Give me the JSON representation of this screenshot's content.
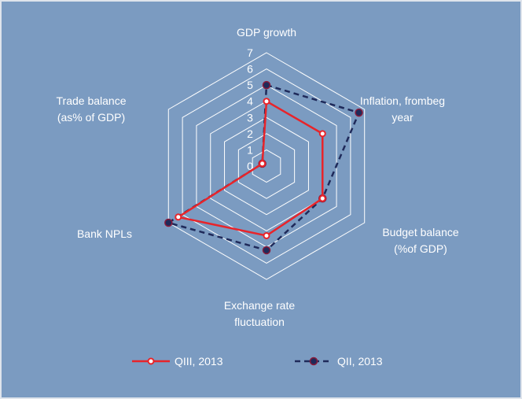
{
  "chart_data": {
    "type": "radar",
    "title": "",
    "axes": [
      [
        "GDP growth"
      ],
      [
        "Inflation,  frombeg",
        "year"
      ],
      [
        "Budget balance",
        "(%of GDP)"
      ],
      [
        "Exchange rate",
        "fluctuation"
      ],
      [
        "Bank NPLs"
      ],
      [
        "Trade balance",
        "(as% of GDP)"
      ]
    ],
    "rlim": [
      0,
      7
    ],
    "ticks": [
      "0",
      "1",
      "2",
      "3",
      "4",
      "5",
      "6",
      "7"
    ],
    "grid": true,
    "legend_position": "bottom",
    "series": [
      {
        "name": "QIII, 2013",
        "values": [
          4,
          4,
          4,
          4.3,
          6.3,
          0.3
        ],
        "color": "#e8242a",
        "style": "solid"
      },
      {
        "name": "QII, 2013",
        "values": [
          5,
          6.6,
          4,
          5.2,
          7,
          0.3
        ],
        "color": "#1f2a5a",
        "style": "dashed"
      }
    ]
  }
}
